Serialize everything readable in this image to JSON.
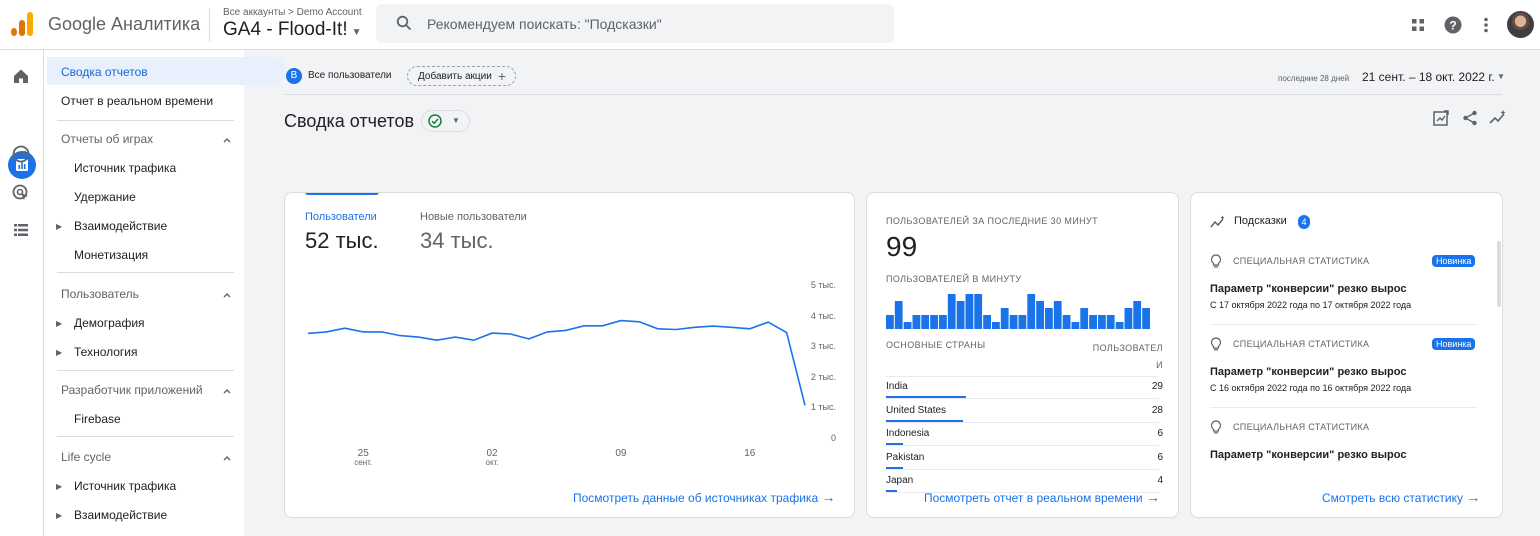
{
  "app": {
    "brand": "Google Аналитика"
  },
  "account": {
    "breadcrumb": "Все аккаунты > Demo Account",
    "property": "GA4 - Flood-It!"
  },
  "search": {
    "placeholder": "Рекомендуем поискать: \"Подсказки\""
  },
  "nav": {
    "selected": "Сводка отчетов",
    "realtime": "Отчет в реальном времени",
    "sections": [
      {
        "title": "Отчеты об играх",
        "items": [
          "Источник трафика",
          "Удержание",
          "Взаимодействие",
          "Монетизация"
        ]
      },
      {
        "title": "Пользователь",
        "items": [
          "Демография",
          "Технология"
        ]
      },
      {
        "title": "Разработчик приложений",
        "items": [
          "Firebase"
        ]
      },
      {
        "title": "Life cycle",
        "items": [
          "Источник трафика",
          "Взаимодействие"
        ]
      }
    ]
  },
  "filters": {
    "segment_letter": "B",
    "segment": "Все пользователи",
    "add_comparison": "Добавить акции"
  },
  "date": {
    "preset": "последние 28 дней",
    "range": "21 сент. – 18 окт. 2022 г."
  },
  "page": {
    "title": "Сводка отчетов"
  },
  "overview_card": {
    "metrics": [
      {
        "label": "Пользователи",
        "value": "52 тыс."
      },
      {
        "label": "Новые пользователи",
        "value": "34 тыс."
      }
    ],
    "link": "Посмотреть данные об источниках трафика"
  },
  "chart_data": {
    "type": "line",
    "series": [
      {
        "name": "Пользователи",
        "values": [
          3450,
          3500,
          3620,
          3500,
          3500,
          3380,
          3330,
          3230,
          3330,
          3230,
          3460,
          3430,
          3270,
          3500,
          3550,
          3700,
          3700,
          3870,
          3830,
          3600,
          3580,
          3650,
          3690,
          3650,
          3600,
          3820,
          3480,
          1100
        ]
      }
    ],
    "ylim": [
      0,
      5000
    ],
    "yticks": [
      "5 тыс.",
      "4 тыс.",
      "3 тыс.",
      "2 тыс.",
      "1 тыс.",
      "0"
    ],
    "xticks": [
      {
        "day": "25",
        "month": "сент."
      },
      {
        "day": "02",
        "month": "окт."
      },
      {
        "day": "09",
        "month": ""
      },
      {
        "day": "16",
        "month": ""
      }
    ]
  },
  "realtime_card": {
    "users_label": "ПОЛЬЗОВАТЕЛЕЙ ЗА ПОСЛЕДНИЕ 30 МИНУТ",
    "users_value": "99",
    "per_minute_label": "ПОЛЬЗОВАТЕЛЕЙ В МИНУТУ",
    "per_minute": [
      2,
      4,
      1,
      2,
      2,
      2,
      2,
      5,
      4,
      5,
      5,
      2,
      1,
      3,
      2,
      2,
      5,
      4,
      3,
      4,
      2,
      1,
      3,
      2,
      2,
      2,
      1,
      3,
      4,
      3
    ],
    "countries_header": "ОСНОВНЫЕ СТРАНЫ",
    "users_header": "ПОЛЬЗОВАТЕЛ\nИ",
    "countries": [
      {
        "name": "India",
        "value": "29",
        "share": 0.29
      },
      {
        "name": "United States",
        "value": "28",
        "share": 0.28
      },
      {
        "name": "Indonesia",
        "value": "6",
        "share": 0.06
      },
      {
        "name": "Pakistan",
        "value": "6",
        "share": 0.06
      },
      {
        "name": "Japan",
        "value": "4",
        "share": 0.04
      }
    ],
    "link": "Посмотреть отчет в реальном времени"
  },
  "insights_card": {
    "title": "Подсказки",
    "count": "4",
    "items": [
      {
        "category": "СПЕЦИАЛЬНАЯ СТАТИСТИКА",
        "badge": "Новинка",
        "title": "Параметр \"конверсии\" резко вырос",
        "date": "С 17 октября 2022 года по 17 октября 2022 года"
      },
      {
        "category": "СПЕЦИАЛЬНАЯ СТАТИСТИКА",
        "badge": "Новинка",
        "title": "Параметр \"конверсии\" резко вырос",
        "date": "С 16 октября 2022 года по 16 октября 2022 года"
      },
      {
        "category": "СПЕЦИАЛЬНАЯ СТАТИСТИКА",
        "badge": "",
        "title": "Параметр \"конверсии\" резко вырос",
        "date": ""
      }
    ],
    "link": "Смотреть всю статистику"
  },
  "colors": {
    "accent": "#1a73e8",
    "logo_orange": "#f9ab00",
    "logo_dark": "#e37400",
    "success": "#188038"
  }
}
